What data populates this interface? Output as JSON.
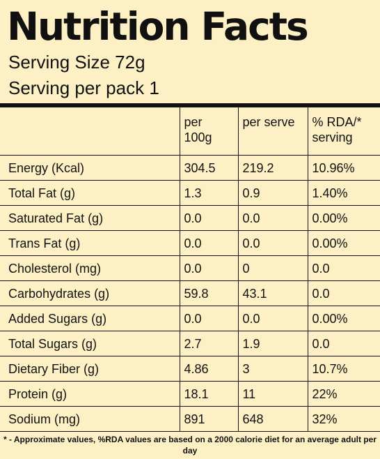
{
  "header": {
    "title": "Nutrition Facts",
    "serving_size": "Serving Size 72g",
    "servings_per_pack": "Serving per pack 1"
  },
  "table": {
    "columns": [
      "",
      "per 100g",
      "per serve",
      "% RDA/* serving"
    ],
    "rows": [
      {
        "nutrient": "Energy (Kcal)",
        "per_100g": "304.5",
        "per_serve": "219.2",
        "rda": "10.96%"
      },
      {
        "nutrient": "Total Fat (g)",
        "per_100g": "1.3",
        "per_serve": "0.9",
        "rda": "1.40%"
      },
      {
        "nutrient": "Saturated Fat (g)",
        "per_100g": "0.0",
        "per_serve": "0.0",
        "rda": "0.00%"
      },
      {
        "nutrient": "Trans Fat (g)",
        "per_100g": "0.0",
        "per_serve": "0.0",
        "rda": "0.00%"
      },
      {
        "nutrient": "Cholesterol (mg)",
        "per_100g": "0.0",
        "per_serve": "0",
        "rda": "0.0"
      },
      {
        "nutrient": "Carbohydrates (g)",
        "per_100g": "59.8",
        "per_serve": "43.1",
        "rda": "0.0"
      },
      {
        "nutrient": "Added Sugars (g)",
        "per_100g": "0.0",
        "per_serve": "0.0",
        "rda": "0.00%"
      },
      {
        "nutrient": "Total Sugars (g)",
        "per_100g": "2.7",
        "per_serve": "1.9",
        "rda": "0.0"
      },
      {
        "nutrient": "Dietary Fiber (g)",
        "per_100g": "4.86",
        "per_serve": "3",
        "rda": "10.7%"
      },
      {
        "nutrient": "Protein (g)",
        "per_100g": "18.1",
        "per_serve": "11",
        "rda": "22%"
      },
      {
        "nutrient": "Sodium (mg)",
        "per_100g": "891",
        "per_serve": "648",
        "rda": "32%"
      }
    ]
  },
  "footnote": "* - Approximate values, %RDA values are based on a 2000 calorie diet for an average adult per day",
  "colors": {
    "background": "#fdf0c4",
    "text": "#111111"
  }
}
